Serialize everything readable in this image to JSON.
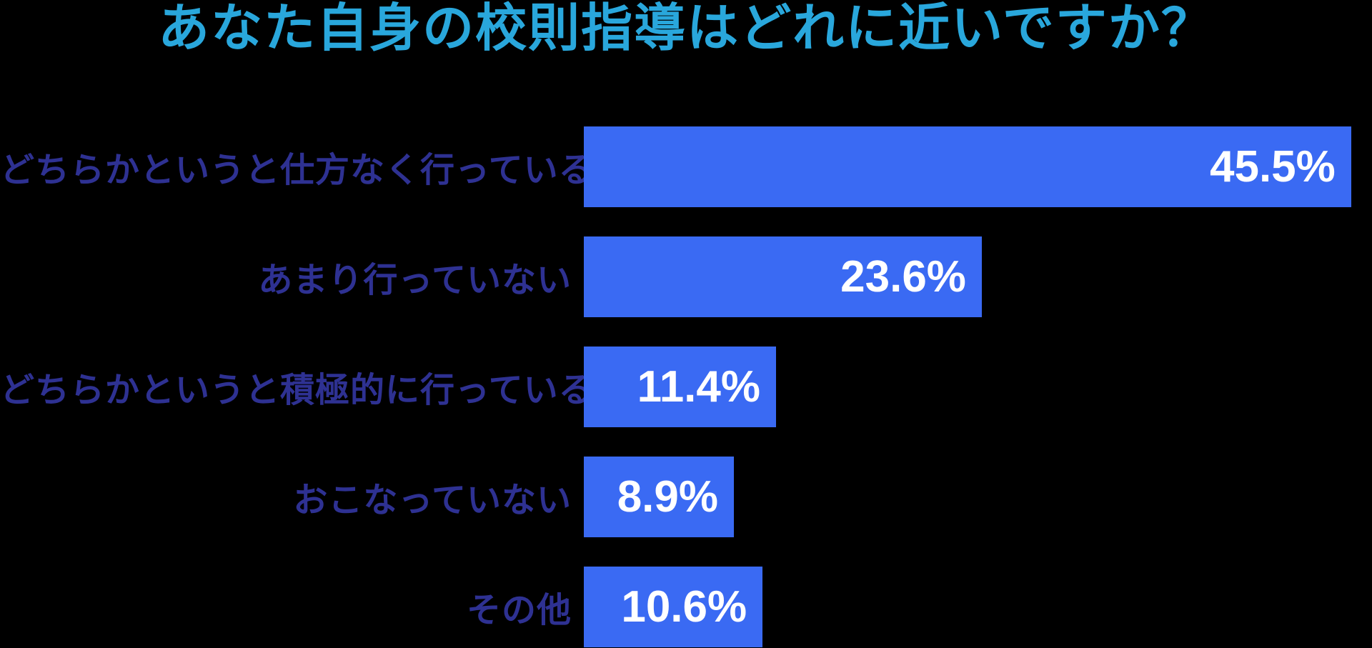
{
  "title": "あなた自身の校則指導はどれに近いですか？",
  "colors": {
    "background": "#000000",
    "title_text": "#29A7DC",
    "bar_fill": "#3A6AF3",
    "category_label": "#2E3192",
    "value_label": "#FFFFFF"
  },
  "chart_data": {
    "type": "bar",
    "orientation": "horizontal",
    "title": "あなた自身の校則指導はどれに近いですか？",
    "xlabel": "",
    "ylabel": "",
    "grid": false,
    "legend": false,
    "xlim": [
      0,
      46.8
    ],
    "categories": [
      "どちらかというと仕方なく行っている",
      "あまり行っていない",
      "どちらかというと積極的に行っている",
      "おこなっていない",
      "その他"
    ],
    "values": [
      45.5,
      23.6,
      11.4,
      8.9,
      10.6
    ],
    "value_labels": [
      "45.5%",
      "23.6%",
      "11.4%",
      "8.9%",
      "10.6%"
    ],
    "value_label_position": "inside-right"
  }
}
